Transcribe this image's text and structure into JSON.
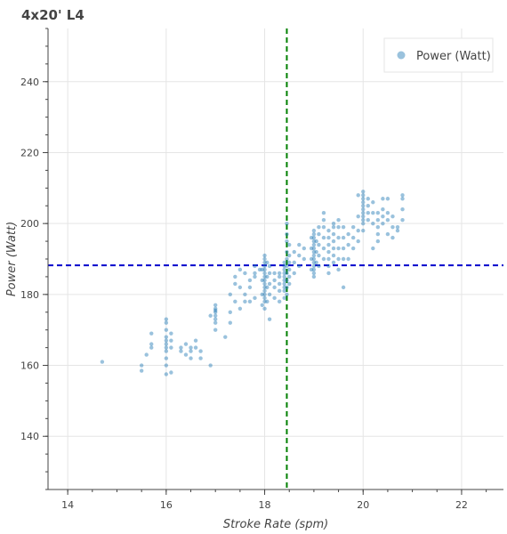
{
  "chart_data": {
    "type": "scatter",
    "title": "4x20' L4",
    "xlabel": "Stroke Rate (spm)",
    "ylabel": "Power (Watt)",
    "xlim": [
      13.6,
      22.85
    ],
    "ylim": [
      125,
      255
    ],
    "xticks": [
      "14",
      "16",
      "18",
      "20",
      "22"
    ],
    "yticks": [
      "140",
      "160",
      "180",
      "200",
      "220",
      "240"
    ],
    "grid": true,
    "legend": {
      "placement": "top-right",
      "entries": [
        "Power (Watt)"
      ]
    },
    "series": [
      {
        "name": "Power (Watt)",
        "color": "#1f77b4",
        "points": [
          [
            14.7,
            161
          ],
          [
            15.5,
            160
          ],
          [
            15.5,
            158.5
          ],
          [
            15.6,
            163
          ],
          [
            15.7,
            169
          ],
          [
            15.7,
            166
          ],
          [
            15.7,
            165
          ],
          [
            16.0,
            157.5
          ],
          [
            16.0,
            160
          ],
          [
            16.0,
            162
          ],
          [
            16.0,
            164
          ],
          [
            16.0,
            165
          ],
          [
            16.0,
            166
          ],
          [
            16.0,
            167
          ],
          [
            16.0,
            168
          ],
          [
            16.0,
            170
          ],
          [
            16.0,
            172
          ],
          [
            16.0,
            173
          ],
          [
            16.1,
            158
          ],
          [
            16.1,
            165
          ],
          [
            16.1,
            167
          ],
          [
            16.1,
            169
          ],
          [
            16.3,
            164
          ],
          [
            16.3,
            165
          ],
          [
            16.4,
            166
          ],
          [
            16.4,
            163
          ],
          [
            16.5,
            165
          ],
          [
            16.5,
            164
          ],
          [
            16.5,
            162
          ],
          [
            16.6,
            167
          ],
          [
            16.6,
            165
          ],
          [
            16.7,
            162
          ],
          [
            16.7,
            164
          ],
          [
            16.9,
            160
          ],
          [
            17.0,
            170
          ],
          [
            17.0,
            172
          ],
          [
            17.0,
            173
          ],
          [
            17.0,
            174
          ],
          [
            17.0,
            175
          ],
          [
            17.0,
            176
          ],
          [
            17.0,
            177
          ],
          [
            17.0,
            175.5
          ],
          [
            16.9,
            174
          ],
          [
            17.3,
            175
          ],
          [
            17.3,
            172
          ],
          [
            17.2,
            168
          ],
          [
            17.4,
            178
          ],
          [
            17.4,
            183
          ],
          [
            17.5,
            176
          ],
          [
            17.5,
            182
          ],
          [
            17.6,
            178
          ],
          [
            17.6,
            180
          ],
          [
            17.7,
            182
          ],
          [
            17.7,
            184
          ],
          [
            17.8,
            185
          ],
          [
            17.8,
            186
          ],
          [
            17.8,
            179
          ],
          [
            17.7,
            178
          ],
          [
            17.9,
            187
          ],
          [
            17.6,
            186
          ],
          [
            17.5,
            187
          ],
          [
            17.4,
            185
          ],
          [
            17.3,
            180
          ],
          [
            17.8,
            188
          ],
          [
            18.0,
            176
          ],
          [
            18.0,
            178
          ],
          [
            18.0,
            179
          ],
          [
            18.0,
            180
          ],
          [
            18.0,
            181
          ],
          [
            18.0,
            182
          ],
          [
            18.0,
            183
          ],
          [
            18.0,
            184
          ],
          [
            18.0,
            185
          ],
          [
            18.0,
            186
          ],
          [
            18.0,
            187
          ],
          [
            18.0,
            188
          ],
          [
            18.0,
            189
          ],
          [
            18.0,
            190
          ],
          [
            18.0,
            191
          ],
          [
            17.95,
            177
          ],
          [
            17.95,
            180
          ],
          [
            17.95,
            184
          ],
          [
            17.95,
            187
          ],
          [
            18.05,
            178
          ],
          [
            18.05,
            182
          ],
          [
            18.05,
            185
          ],
          [
            18.05,
            189
          ],
          [
            18.1,
            180
          ],
          [
            18.1,
            183
          ],
          [
            18.1,
            186
          ],
          [
            18.1,
            188
          ],
          [
            18.2,
            179
          ],
          [
            18.2,
            182
          ],
          [
            18.2,
            184
          ],
          [
            18.2,
            186
          ],
          [
            18.1,
            173
          ],
          [
            18.3,
            178
          ],
          [
            18.3,
            181
          ],
          [
            18.3,
            183
          ],
          [
            18.3,
            185
          ],
          [
            18.3,
            186
          ],
          [
            18.4,
            179
          ],
          [
            18.4,
            181
          ],
          [
            18.4,
            182
          ],
          [
            18.4,
            183
          ],
          [
            18.4,
            184
          ],
          [
            18.4,
            185
          ],
          [
            18.4,
            186
          ],
          [
            18.4,
            187
          ],
          [
            18.4,
            188
          ],
          [
            18.4,
            189
          ],
          [
            18.45,
            180
          ],
          [
            18.45,
            182
          ],
          [
            18.45,
            184
          ],
          [
            18.45,
            186
          ],
          [
            18.45,
            188
          ],
          [
            18.45,
            190
          ],
          [
            18.45,
            192
          ],
          [
            18.45,
            195
          ],
          [
            18.45,
            197
          ],
          [
            18.45,
            200
          ],
          [
            18.5,
            183
          ],
          [
            18.5,
            185
          ],
          [
            18.5,
            187
          ],
          [
            18.5,
            189
          ],
          [
            18.5,
            191
          ],
          [
            18.5,
            194
          ],
          [
            18.6,
            186
          ],
          [
            18.6,
            189
          ],
          [
            18.6,
            192
          ],
          [
            18.7,
            188
          ],
          [
            18.7,
            191
          ],
          [
            18.7,
            194
          ],
          [
            18.8,
            190
          ],
          [
            18.8,
            193
          ],
          [
            19.0,
            185
          ],
          [
            19.0,
            186
          ],
          [
            19.0,
            187
          ],
          [
            19.0,
            188
          ],
          [
            19.0,
            189
          ],
          [
            19.0,
            190
          ],
          [
            19.0,
            191
          ],
          [
            19.0,
            192
          ],
          [
            19.0,
            193
          ],
          [
            19.0,
            194
          ],
          [
            19.0,
            195
          ],
          [
            19.0,
            196
          ],
          [
            19.0,
            197
          ],
          [
            19.0,
            198
          ],
          [
            18.95,
            187
          ],
          [
            18.95,
            190
          ],
          [
            18.95,
            193
          ],
          [
            18.95,
            196
          ],
          [
            19.05,
            189
          ],
          [
            19.05,
            192
          ],
          [
            19.05,
            195
          ],
          [
            19.1,
            188
          ],
          [
            19.1,
            191
          ],
          [
            19.1,
            194
          ],
          [
            19.1,
            197
          ],
          [
            19.1,
            199
          ],
          [
            19.2,
            190
          ],
          [
            19.2,
            193
          ],
          [
            19.2,
            196
          ],
          [
            19.2,
            199
          ],
          [
            19.2,
            201
          ],
          [
            19.2,
            203
          ],
          [
            19.3,
            186
          ],
          [
            19.3,
            188
          ],
          [
            19.3,
            190
          ],
          [
            19.3,
            192
          ],
          [
            19.3,
            194
          ],
          [
            19.3,
            196
          ],
          [
            19.3,
            198
          ],
          [
            19.4,
            189
          ],
          [
            19.4,
            191
          ],
          [
            19.4,
            193
          ],
          [
            19.4,
            195
          ],
          [
            19.4,
            197
          ],
          [
            19.4,
            199
          ],
          [
            19.4,
            200
          ],
          [
            19.5,
            187
          ],
          [
            19.5,
            190
          ],
          [
            19.5,
            193
          ],
          [
            19.5,
            196
          ],
          [
            19.5,
            199
          ],
          [
            19.5,
            201
          ],
          [
            19.6,
            190
          ],
          [
            19.6,
            193
          ],
          [
            19.6,
            196
          ],
          [
            19.6,
            199
          ],
          [
            19.6,
            182
          ],
          [
            19.7,
            190
          ],
          [
            19.7,
            194
          ],
          [
            19.7,
            197
          ],
          [
            19.8,
            193
          ],
          [
            19.8,
            196
          ],
          [
            19.8,
            199
          ],
          [
            19.9,
            195
          ],
          [
            19.9,
            198
          ],
          [
            20.0,
            198
          ],
          [
            20.0,
            200
          ],
          [
            20.0,
            201
          ],
          [
            20.0,
            202
          ],
          [
            20.0,
            203
          ],
          [
            20.0,
            204
          ],
          [
            20.0,
            205
          ],
          [
            20.0,
            206
          ],
          [
            20.0,
            207
          ],
          [
            20.0,
            208
          ],
          [
            20.0,
            209
          ],
          [
            19.9,
            208
          ],
          [
            19.9,
            202
          ],
          [
            20.1,
            201
          ],
          [
            20.1,
            203
          ],
          [
            20.1,
            205
          ],
          [
            20.1,
            207
          ],
          [
            20.2,
            200
          ],
          [
            20.2,
            203
          ],
          [
            20.2,
            206
          ],
          [
            20.3,
            197
          ],
          [
            20.3,
            199
          ],
          [
            20.3,
            201
          ],
          [
            20.3,
            203
          ],
          [
            20.4,
            200
          ],
          [
            20.4,
            202
          ],
          [
            20.4,
            204
          ],
          [
            20.4,
            207
          ],
          [
            20.5,
            201
          ],
          [
            20.5,
            203
          ],
          [
            20.5,
            207
          ],
          [
            20.6,
            196
          ],
          [
            20.6,
            199
          ],
          [
            20.6,
            202
          ],
          [
            20.7,
            198
          ],
          [
            20.8,
            201
          ],
          [
            20.8,
            204
          ],
          [
            20.8,
            207
          ],
          [
            20.8,
            208
          ],
          [
            20.2,
            193
          ],
          [
            20.3,
            195
          ],
          [
            20.5,
            197
          ],
          [
            20.7,
            199
          ]
        ]
      }
    ],
    "reference_lines": [
      {
        "orientation": "vertical",
        "value": 18.45,
        "color": "#008000"
      },
      {
        "orientation": "horizontal",
        "value": 188.2,
        "color": "#0000cc"
      }
    ]
  }
}
